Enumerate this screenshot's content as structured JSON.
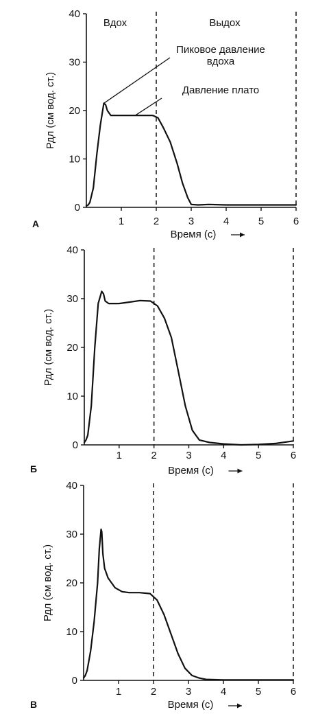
{
  "chart_data": [
    {
      "panel": "А",
      "type": "line",
      "xlabel": "Время (с)",
      "ylabel": "Рдл (см вод. ст.)",
      "xlim": [
        0,
        6
      ],
      "ylim": [
        0,
        40
      ],
      "xticks": [
        "1",
        "2",
        "3",
        "4",
        "5",
        "6"
      ],
      "yticks": [
        "0",
        "10",
        "20",
        "30",
        "40"
      ],
      "vlines": [
        2,
        6
      ],
      "phases": [
        "Вдох",
        "Выдох"
      ],
      "annotations": [
        {
          "text": [
            "Пиковое давление",
            "вдоха"
          ],
          "point": [
            0.5,
            21.5
          ]
        },
        {
          "text": [
            "Давление плато"
          ],
          "point": [
            1.4,
            19
          ]
        }
      ],
      "series": [
        {
          "x": [
            0,
            0.05,
            0.1,
            0.2,
            0.3,
            0.4,
            0.5,
            0.55,
            0.6,
            0.7,
            0.8,
            1.0,
            1.3,
            1.6,
            1.9,
            2.05,
            2.2,
            2.4,
            2.6,
            2.75,
            2.9,
            3.0,
            3.2,
            3.5,
            4.0,
            4.5,
            5.0,
            5.5,
            6.0
          ],
          "y": [
            0.3,
            0.5,
            1,
            4,
            11,
            17,
            21.5,
            21.2,
            20,
            19,
            19,
            19,
            19,
            19,
            19,
            18.5,
            16.5,
            13.5,
            9,
            5,
            2,
            0.6,
            0.5,
            0.6,
            0.5,
            0.5,
            0.5,
            0.5,
            0.5
          ]
        }
      ]
    },
    {
      "panel": "Б",
      "type": "line",
      "xlabel": "Время (с)",
      "ylabel": "Рдл (см вод. ст.)",
      "xlim": [
        0,
        6
      ],
      "ylim": [
        0,
        40
      ],
      "xticks": [
        "1",
        "2",
        "3",
        "4",
        "5",
        "6"
      ],
      "yticks": [
        "0",
        "10",
        "20",
        "30",
        "40"
      ],
      "vlines": [
        2,
        6
      ],
      "series": [
        {
          "x": [
            0,
            0.05,
            0.1,
            0.2,
            0.3,
            0.4,
            0.5,
            0.55,
            0.6,
            0.7,
            0.8,
            1.0,
            1.3,
            1.6,
            1.9,
            2.1,
            2.3,
            2.5,
            2.7,
            2.9,
            3.1,
            3.3,
            3.6,
            4.0,
            4.5,
            5.0,
            5.5,
            6.0
          ],
          "y": [
            0.5,
            1,
            2,
            8,
            20,
            29,
            31.5,
            31,
            29.5,
            29,
            29,
            29,
            29.3,
            29.6,
            29.5,
            28.5,
            26,
            22,
            15,
            8,
            3,
            1,
            0.5,
            0.2,
            0,
            0.1,
            0.3,
            0.8
          ]
        }
      ]
    },
    {
      "panel": "В",
      "type": "line",
      "xlabel": "Время (с)",
      "ylabel": "Рдл (см вод. ст.)",
      "xlim": [
        0,
        6
      ],
      "ylim": [
        0,
        40
      ],
      "xticks": [
        "1",
        "2",
        "3",
        "4",
        "5",
        "6"
      ],
      "yticks": [
        "0",
        "10",
        "20",
        "30",
        "40"
      ],
      "vlines": [
        2,
        6
      ],
      "series": [
        {
          "x": [
            0,
            0.05,
            0.1,
            0.2,
            0.3,
            0.4,
            0.45,
            0.5,
            0.52,
            0.55,
            0.6,
            0.7,
            0.9,
            1.1,
            1.3,
            1.6,
            1.9,
            2.1,
            2.3,
            2.5,
            2.7,
            2.9,
            3.1,
            3.3,
            3.5,
            4.0,
            4.5,
            5.0,
            5.5,
            6.0
          ],
          "y": [
            0.5,
            1,
            2,
            6,
            12,
            20,
            27,
            31,
            30.5,
            26,
            23,
            21,
            19,
            18.2,
            18,
            18,
            17.8,
            16.5,
            13.5,
            9.5,
            5.5,
            2.5,
            1,
            0.5,
            0.2,
            0.1,
            0.1,
            0.1,
            0.1,
            0.1
          ]
        }
      ]
    }
  ]
}
